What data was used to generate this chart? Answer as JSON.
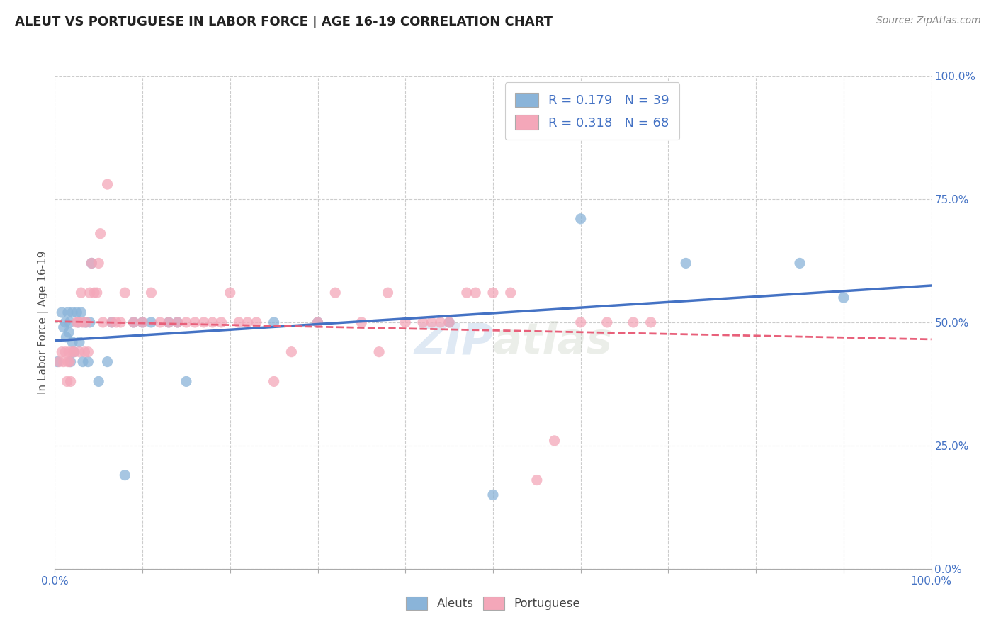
{
  "title": "ALEUT VS PORTUGUESE IN LABOR FORCE | AGE 16-19 CORRELATION CHART",
  "source": "Source: ZipAtlas.com",
  "ylabel": "In Labor Force | Age 16-19",
  "xlim": [
    0.0,
    1.0
  ],
  "ylim": [
    0.0,
    1.0
  ],
  "y_ticks": [
    0.0,
    0.25,
    0.5,
    0.75,
    1.0
  ],
  "x_ticks": [
    0.0,
    0.1,
    0.2,
    0.3,
    0.4,
    0.5,
    0.6,
    0.7,
    0.8,
    0.9,
    1.0
  ],
  "y_tick_labels_right": [
    "0.0%",
    "25.0%",
    "50.0%",
    "75.0%",
    "100.0%"
  ],
  "aleuts_color": "#8ab4d9",
  "portuguese_color": "#f4a7b9",
  "aleuts_line_color": "#4472c4",
  "portuguese_line_color": "#e8607a",
  "aleuts_R": 0.179,
  "aleuts_N": 39,
  "portuguese_R": 0.318,
  "portuguese_N": 68,
  "watermark": "ZIPatlas",
  "background_color": "#ffffff",
  "grid_color": "#cccccc",
  "aleuts_x": [
    0.003,
    0.008,
    0.01,
    0.012,
    0.013,
    0.015,
    0.016,
    0.017,
    0.018,
    0.02,
    0.02,
    0.022,
    0.025,
    0.027,
    0.028,
    0.03,
    0.032,
    0.035,
    0.038,
    0.04,
    0.042,
    0.05,
    0.06,
    0.065,
    0.08,
    0.09,
    0.1,
    0.11,
    0.13,
    0.14,
    0.15,
    0.25,
    0.3,
    0.45,
    0.5,
    0.6,
    0.72,
    0.85,
    0.9
  ],
  "aleuts_y": [
    0.42,
    0.52,
    0.49,
    0.5,
    0.47,
    0.52,
    0.48,
    0.5,
    0.42,
    0.52,
    0.46,
    0.44,
    0.52,
    0.5,
    0.46,
    0.52,
    0.42,
    0.5,
    0.42,
    0.5,
    0.62,
    0.38,
    0.42,
    0.5,
    0.19,
    0.5,
    0.5,
    0.5,
    0.5,
    0.5,
    0.38,
    0.5,
    0.5,
    0.5,
    0.15,
    0.71,
    0.62,
    0.62,
    0.55
  ],
  "portuguese_x": [
    0.005,
    0.008,
    0.01,
    0.012,
    0.014,
    0.015,
    0.016,
    0.017,
    0.018,
    0.02,
    0.022,
    0.025,
    0.027,
    0.028,
    0.03,
    0.032,
    0.034,
    0.036,
    0.038,
    0.04,
    0.042,
    0.045,
    0.048,
    0.05,
    0.052,
    0.055,
    0.06,
    0.065,
    0.07,
    0.075,
    0.08,
    0.09,
    0.1,
    0.11,
    0.12,
    0.13,
    0.14,
    0.15,
    0.16,
    0.17,
    0.18,
    0.19,
    0.2,
    0.21,
    0.22,
    0.23,
    0.25,
    0.27,
    0.3,
    0.32,
    0.35,
    0.37,
    0.38,
    0.4,
    0.42,
    0.43,
    0.44,
    0.45,
    0.47,
    0.48,
    0.5,
    0.52,
    0.55,
    0.57,
    0.6,
    0.63,
    0.66,
    0.68
  ],
  "portuguese_y": [
    0.42,
    0.44,
    0.42,
    0.44,
    0.38,
    0.42,
    0.44,
    0.42,
    0.38,
    0.44,
    0.44,
    0.5,
    0.5,
    0.44,
    0.56,
    0.5,
    0.44,
    0.5,
    0.44,
    0.56,
    0.62,
    0.56,
    0.56,
    0.62,
    0.68,
    0.5,
    0.78,
    0.5,
    0.5,
    0.5,
    0.56,
    0.5,
    0.5,
    0.56,
    0.5,
    0.5,
    0.5,
    0.5,
    0.5,
    0.5,
    0.5,
    0.5,
    0.56,
    0.5,
    0.5,
    0.5,
    0.38,
    0.44,
    0.5,
    0.56,
    0.5,
    0.44,
    0.56,
    0.5,
    0.5,
    0.5,
    0.5,
    0.5,
    0.56,
    0.56,
    0.56,
    0.56,
    0.18,
    0.26,
    0.5,
    0.5,
    0.5,
    0.5
  ]
}
